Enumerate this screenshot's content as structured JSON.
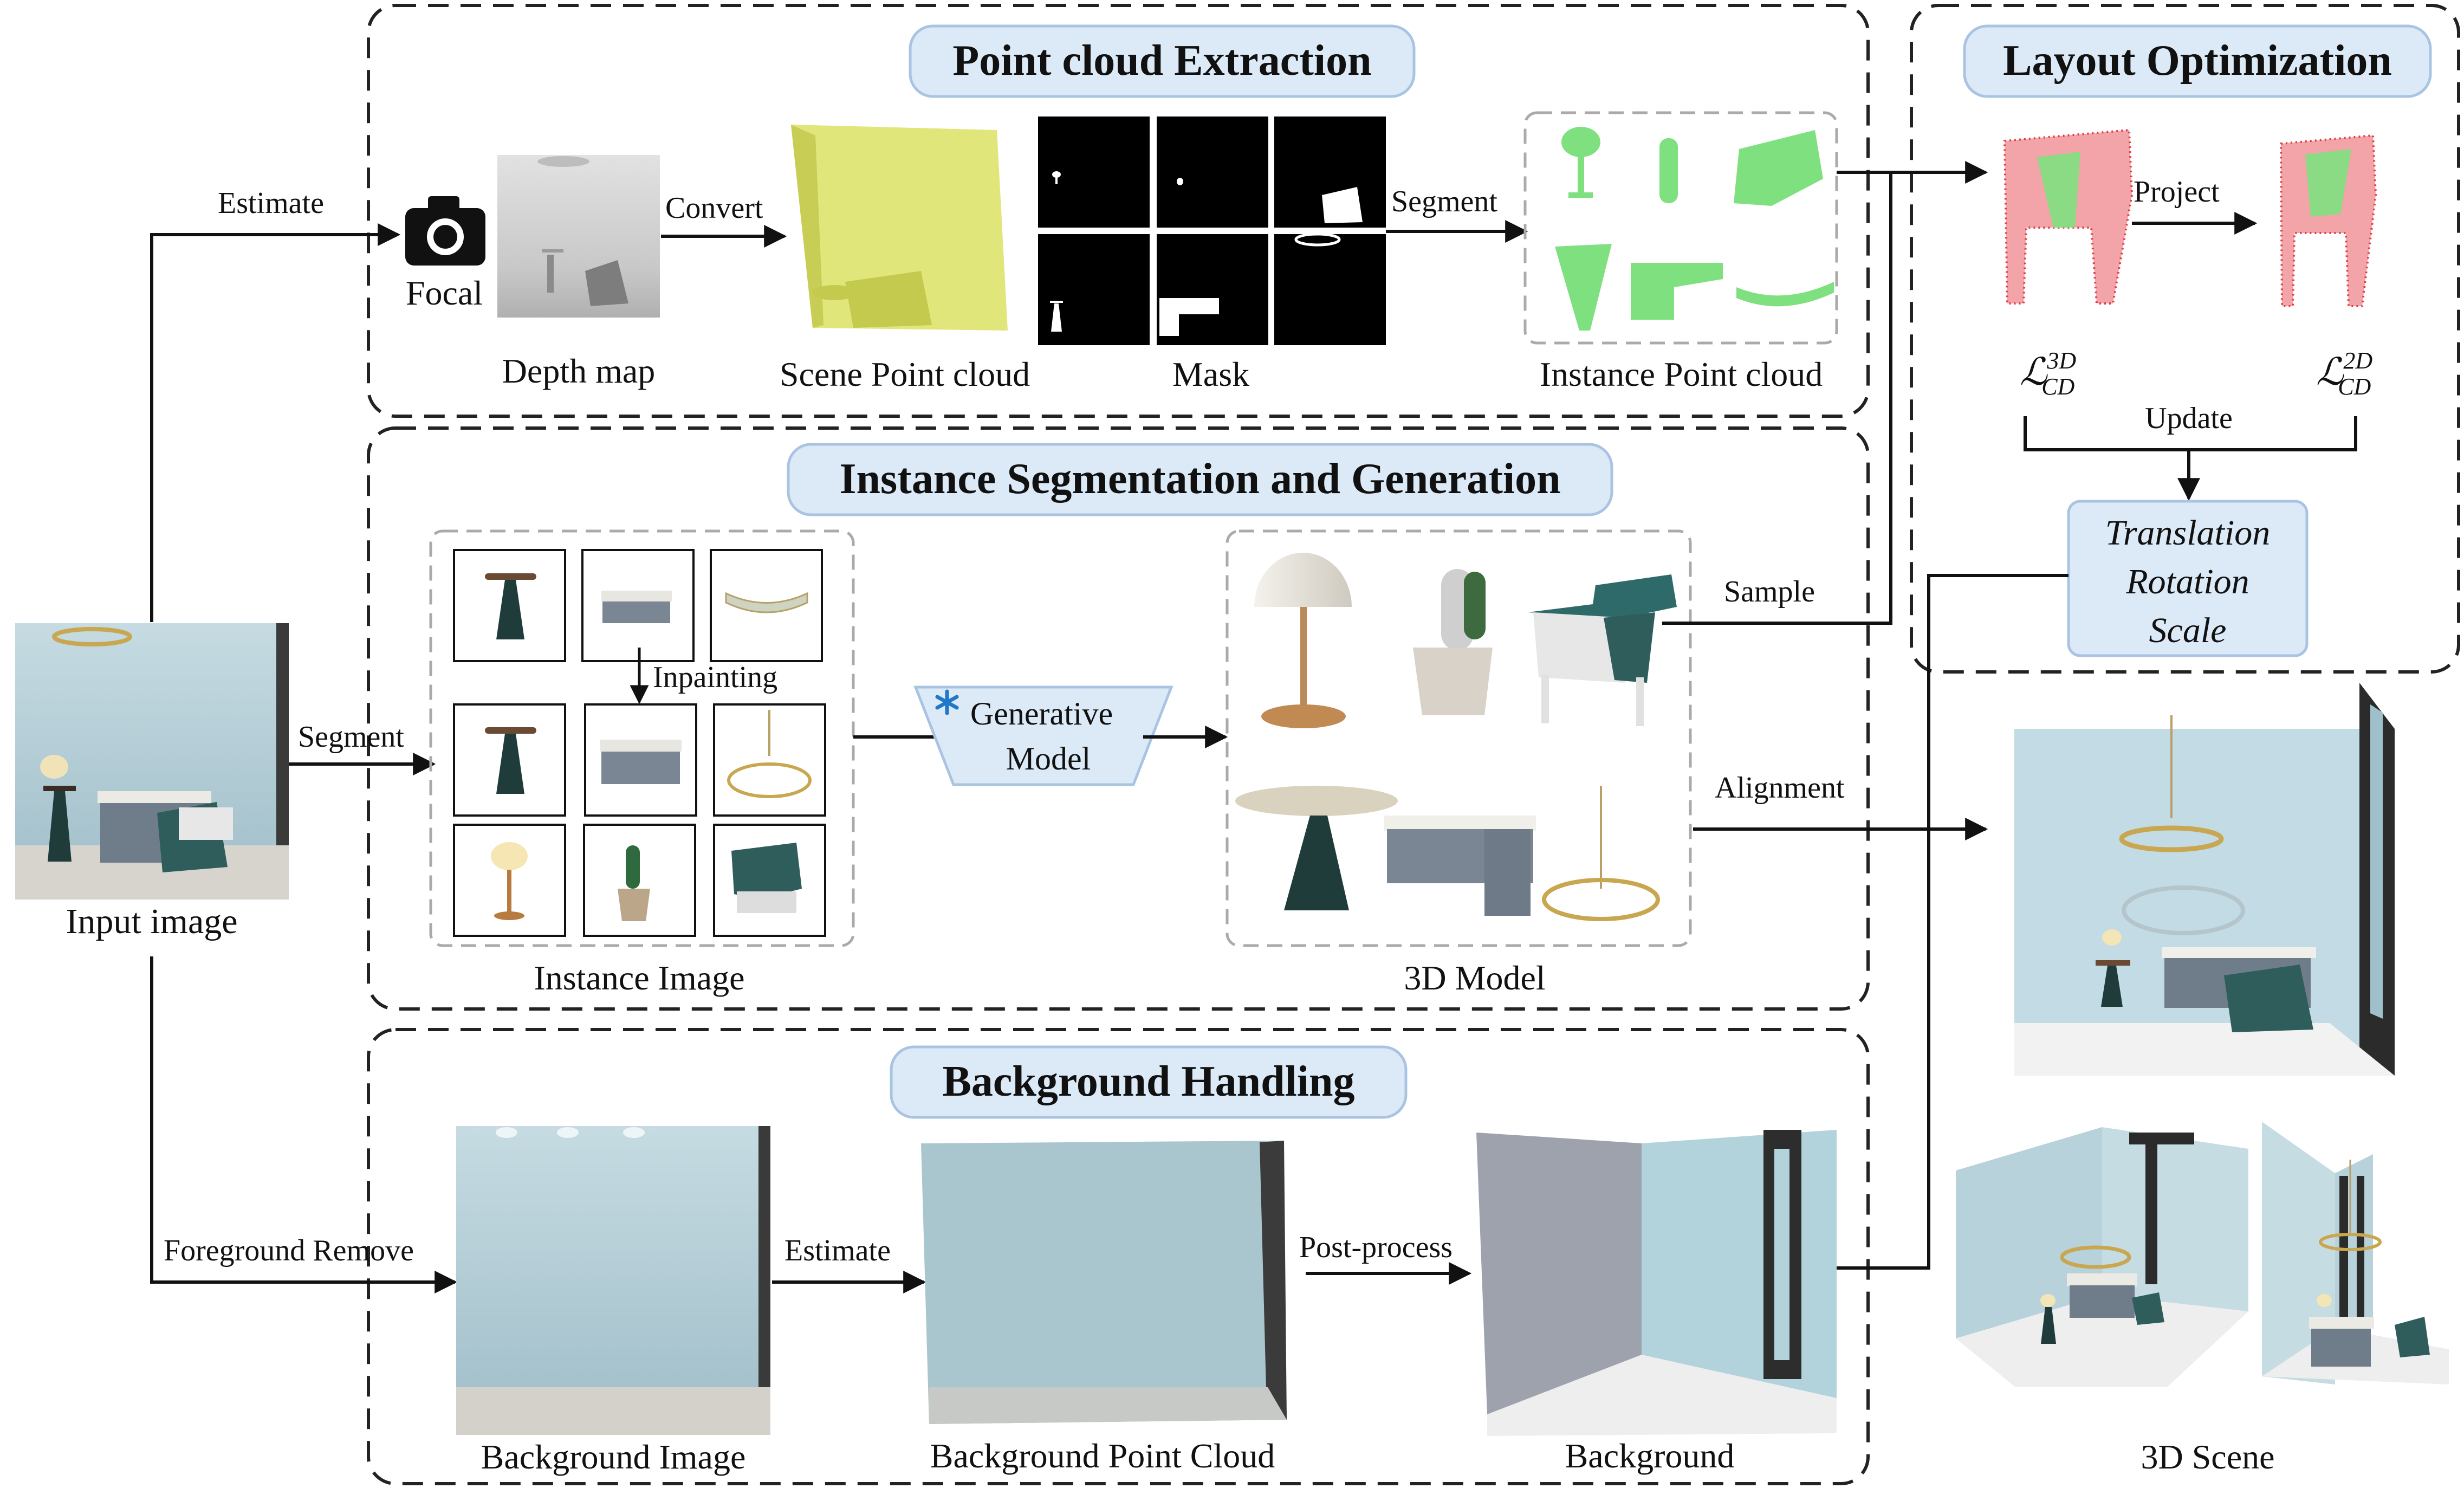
{
  "sections": {
    "point_cloud": "Point cloud Extraction",
    "layout_opt": "Layout Optimization",
    "instance_seg": "Instance Segmentation and Generation",
    "background": "Background Handling"
  },
  "labels": {
    "input_image": "Input image",
    "estimate": "Estimate",
    "focal": "Focal",
    "depth_map": "Depth map",
    "convert": "Convert",
    "scene_point_cloud": "Scene Point cloud",
    "mask": "Mask",
    "segment_top": "Segment",
    "instance_point_cloud": "Instance Point cloud",
    "project": "Project",
    "loss_3d_base": "ℒ",
    "loss_3d_sup": "3D",
    "loss_3d_sub": "CD",
    "loss_2d_base": "ℒ",
    "loss_2d_sup": "2D",
    "loss_2d_sub": "CD",
    "update": "Update",
    "translation": "Translation",
    "rotation": "Rotation",
    "scale": "Scale",
    "segment_mid": "Segment",
    "inpainting": "Inpainting",
    "generative_line1": "Generative",
    "generative_line2": "Model",
    "instance_image": "Instance Image",
    "model_3d": "3D Model",
    "sample": "Sample",
    "alignment": "Alignment",
    "foreground_remove": "Foreground Remove",
    "background_image": "Background Image",
    "estimate_bottom": "Estimate",
    "background_point_cloud": "Background Point Cloud",
    "post_process": "Post-process",
    "background_label": "Background",
    "scene_3d": "3D Scene"
  },
  "icons": {
    "camera": "camera-icon",
    "snowflake": "snowflake-icon"
  },
  "colors": {
    "pill_fill": "#dce9f6",
    "pill_stroke": "#a9c4e2",
    "wall_blue": "#b9d3dc",
    "point_yellow": "#dde36a",
    "point_green": "#7fe07f",
    "point_red": "#e0404a"
  }
}
